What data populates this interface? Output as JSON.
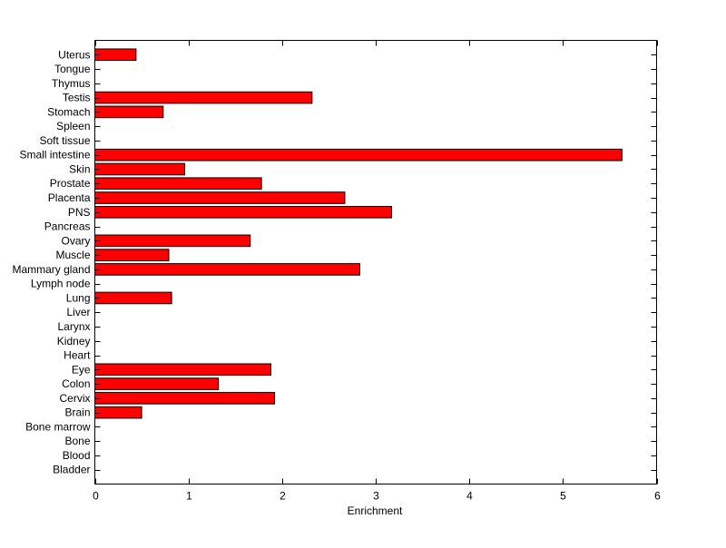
{
  "chart_data": {
    "type": "bar",
    "orientation": "horizontal",
    "title": "",
    "xlabel": "Enrichment",
    "ylabel": "",
    "xlim": [
      0,
      6
    ],
    "xticks": [
      0,
      1,
      2,
      3,
      4,
      5,
      6
    ],
    "grid": false,
    "bar_color": "#ff0000",
    "categories": [
      "Bladder",
      "Blood",
      "Bone",
      "Bone marrow",
      "Brain",
      "Cervix",
      "Colon",
      "Eye",
      "Heart",
      "Kidney",
      "Larynx",
      "Liver",
      "Lung",
      "Lymph node",
      "Mammary gland",
      "Muscle",
      "Ovary",
      "Pancreas",
      "PNS",
      "Placenta",
      "Prostate",
      "Skin",
      "Small intestine",
      "Soft tissue",
      "Spleen",
      "Stomach",
      "Testis",
      "Thymus",
      "Tongue",
      "Uterus"
    ],
    "values": [
      0,
      0,
      0,
      0,
      0.5,
      1.92,
      1.32,
      1.88,
      0,
      0,
      0,
      0,
      0.82,
      0,
      2.83,
      0.79,
      1.66,
      0,
      3.17,
      2.67,
      1.78,
      0.96,
      5.63,
      0,
      0,
      0.73,
      2.32,
      0,
      0,
      0.44
    ]
  }
}
